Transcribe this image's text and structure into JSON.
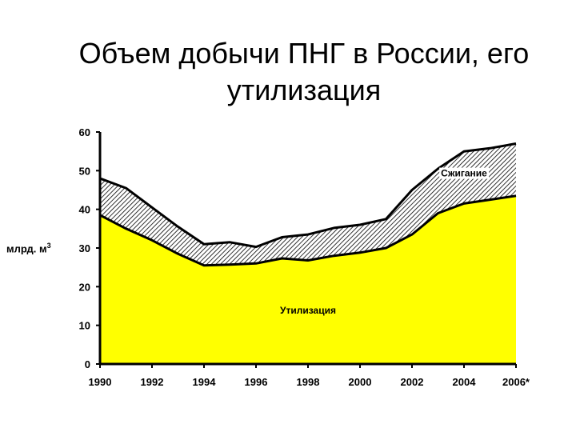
{
  "chart_data": {
    "type": "area",
    "title_lines": [
      "Объем добычи ПНГ в России, его",
      "утилизация"
    ],
    "ylabel": "млрд. м",
    "ylabel_sup": "3",
    "xlabel": "",
    "ylim": [
      0,
      60
    ],
    "yticks": [
      0,
      10,
      20,
      30,
      40,
      50,
      60
    ],
    "xticks": [
      "1990",
      "1992",
      "1994",
      "1996",
      "1998",
      "2000",
      "2002",
      "2004",
      "2006*"
    ],
    "x": [
      1990,
      1991,
      1992,
      1993,
      1994,
      1995,
      1996,
      1997,
      1998,
      1999,
      2000,
      2001,
      2002,
      2003,
      2004,
      2005,
      2006
    ],
    "series": [
      {
        "name": "Утилизация",
        "values": [
          38.5,
          35,
          32,
          28.5,
          25.5,
          25.7,
          26,
          27.3,
          26.8,
          28,
          28.8,
          30,
          33.5,
          39,
          41.5,
          42.5,
          43.5
        ]
      },
      {
        "name": "Сжигание",
        "values": [
          48,
          45.5,
          40.5,
          35.5,
          31,
          31.5,
          30.3,
          32.8,
          33.5,
          35.2,
          36,
          37.5,
          45,
          50.5,
          55,
          55.8,
          57
        ]
      }
    ],
    "grid": false,
    "colors": {
      "utilization": "#ffff00",
      "flaring_hatch": "#000000",
      "background": "#ffffff"
    }
  }
}
